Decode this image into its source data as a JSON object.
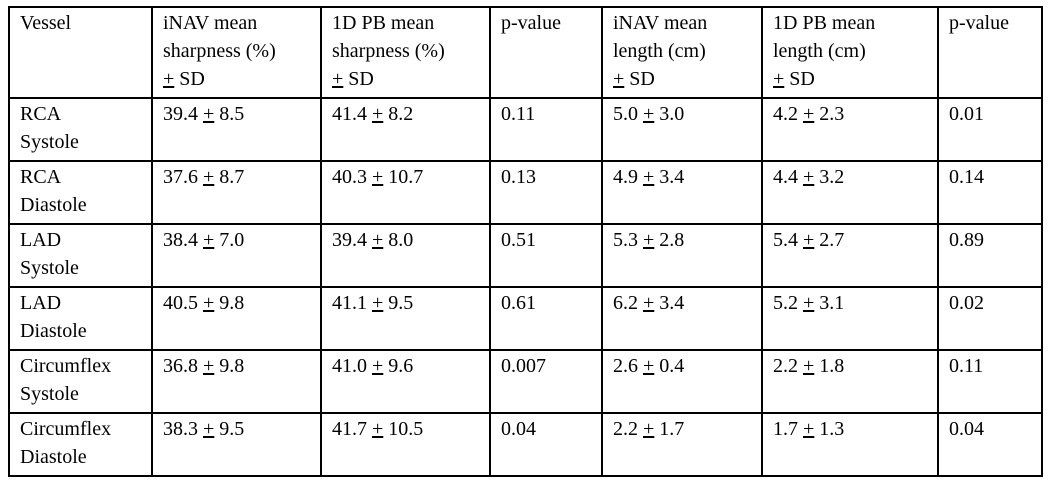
{
  "table": {
    "headers": [
      {
        "line1": "Vessel",
        "line2": "",
        "line3": ""
      },
      {
        "line1": "iNAV mean",
        "line2": "sharpness (%)",
        "line3": "+ SD"
      },
      {
        "line1": "1D PB mean",
        "line2": "sharpness (%)",
        "line3": "+ SD"
      },
      {
        "line1": "p-value",
        "line2": "",
        "line3": ""
      },
      {
        "line1": "iNAV mean",
        "line2": "length (cm)",
        "line3": "+ SD"
      },
      {
        "line1": "1D PB mean",
        "line2": "length (cm)",
        "line3": "+ SD"
      },
      {
        "line1": "p-value",
        "line2": "",
        "line3": ""
      }
    ],
    "rows": [
      {
        "vessel": {
          "l1": "RCA",
          "l2": "Systole"
        },
        "inav_sharp": {
          "mean": "39.4",
          "sd": "8.5"
        },
        "pb_sharp": {
          "mean": "41.4",
          "sd": "8.2"
        },
        "p1": "0.11",
        "inav_len": {
          "mean": "5.0",
          "sd": "3.0"
        },
        "pb_len": {
          "mean": "4.2",
          "sd": "2.3"
        },
        "p2": "0.01"
      },
      {
        "vessel": {
          "l1": "RCA",
          "l2": "Diastole"
        },
        "inav_sharp": {
          "mean": "37.6",
          "sd": "8.7"
        },
        "pb_sharp": {
          "mean": "40.3",
          "sd": "10.7"
        },
        "p1": "0.13",
        "inav_len": {
          "mean": "4.9",
          "sd": "3.4"
        },
        "pb_len": {
          "mean": "4.4",
          "sd": "3.2"
        },
        "p2": "0.14"
      },
      {
        "vessel": {
          "l1": "LAD",
          "l2": "Systole"
        },
        "inav_sharp": {
          "mean": "38.4",
          "sd": "7.0"
        },
        "pb_sharp": {
          "mean": "39.4",
          "sd": "8.0"
        },
        "p1": "0.51",
        "inav_len": {
          "mean": "5.3",
          "sd": "2.8"
        },
        "pb_len": {
          "mean": "5.4",
          "sd": "2.7"
        },
        "p2": "0.89"
      },
      {
        "vessel": {
          "l1": "LAD",
          "l2": "Diastole"
        },
        "inav_sharp": {
          "mean": "40.5",
          "sd": "9.8"
        },
        "pb_sharp": {
          "mean": "41.1",
          "sd": "9.5"
        },
        "p1": "0.61",
        "inav_len": {
          "mean": "6.2",
          "sd": "3.4"
        },
        "pb_len": {
          "mean": "5.2",
          "sd": "3.1"
        },
        "p2": "0.02"
      },
      {
        "vessel": {
          "l1": "Circumflex",
          "l2": "Systole"
        },
        "inav_sharp": {
          "mean": "36.8",
          "sd": "9.8"
        },
        "pb_sharp": {
          "mean": "41.0",
          "sd": "9.6"
        },
        "p1": "0.007",
        "inav_len": {
          "mean": "2.6",
          "sd": "0.4"
        },
        "pb_len": {
          "mean": "2.2",
          "sd": "1.8"
        },
        "p2": "0.11"
      },
      {
        "vessel": {
          "l1": "Circumflex",
          "l2": "Diastole"
        },
        "inav_sharp": {
          "mean": "38.3",
          "sd": "9.5"
        },
        "pb_sharp": {
          "mean": "41.7",
          "sd": "10.5"
        },
        "p1": "0.04",
        "inav_len": {
          "mean": "2.2",
          "sd": "1.7"
        },
        "pb_len": {
          "mean": "1.7",
          "sd": "1.3"
        },
        "p2": "0.04"
      }
    ]
  }
}
